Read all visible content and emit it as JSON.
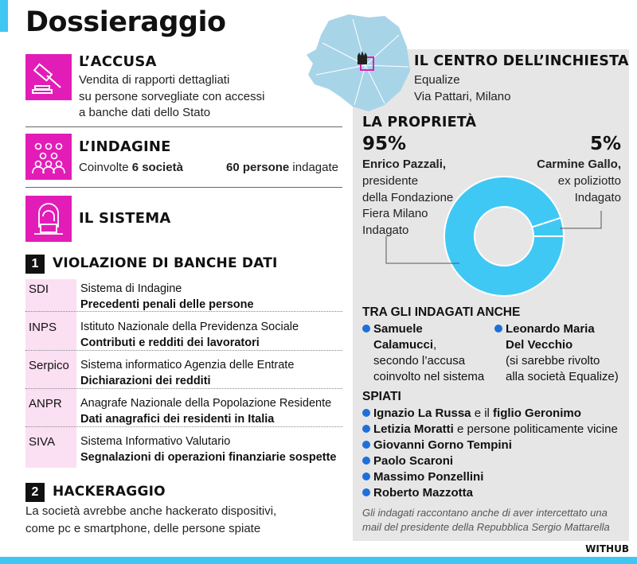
{
  "title": "Dossieraggio",
  "accusa": {
    "heading": "L’ACCUSA",
    "lines": [
      "Vendita di rapporti dettagliati",
      "su persone sorvegliate con accessi",
      "a banche dati dello Stato"
    ]
  },
  "indagine": {
    "heading": "L’INDAGINE",
    "a_pre": "Coinvolte ",
    "a_bold": "6 società",
    "b_bold": "60 persone",
    "b_post": " indagate"
  },
  "sistema": {
    "heading": "IL SISTEMA"
  },
  "section1": {
    "number": "1",
    "heading": "VIOLAZIONE DI BANCHE DATI",
    "rows": [
      {
        "code": "SDI",
        "name": "Sistema di Indagine",
        "data": "Precedenti penali delle persone"
      },
      {
        "code": "INPS",
        "name": "Istituto Nazionale della Previdenza Sociale",
        "data": "Contributi e redditi dei lavoratori"
      },
      {
        "code": "Serpico",
        "name": "Sistema informatico Agenzia delle Entrate",
        "data": "Dichiarazioni dei redditi"
      },
      {
        "code": "ANPR",
        "name": "Anagrafe Nazionale della Popolazione Residente",
        "data": "Dati anagrafici dei residenti in Italia"
      },
      {
        "code": "SIVA",
        "name": "Sistema Informativo Valutario",
        "data": "Segnalazioni di operazioni finanziarie sospette"
      }
    ]
  },
  "section2": {
    "number": "2",
    "heading": "HACKERAGGIO",
    "lines": [
      "La società avrebbe anche hackerato dispositivi,",
      "come pc e smartphone, delle persone spiate"
    ]
  },
  "centro": {
    "heading": "IL CENTRO DELL’INCHIESTA",
    "lines": [
      "Equalize",
      "Via Pattari, Milano"
    ]
  },
  "proprieta": {
    "heading": "LA PROPRIETÀ",
    "owners": [
      {
        "pct_label": "95%",
        "value": 95,
        "name": "Enrico Pazzali,",
        "lines": [
          "presidente",
          "della Fondazione",
          "Fiera Milano",
          "Indagato"
        ]
      },
      {
        "pct_label": "5%",
        "value": 5,
        "name": "Carmine Gallo,",
        "lines": [
          "ex poliziotto",
          "Indagato"
        ]
      }
    ],
    "color": "#40c8f4"
  },
  "indagati": {
    "heading": "TRA GLI INDAGATI ANCHE",
    "people": [
      {
        "name1": "Samuele",
        "name2": "Calamucci",
        "suffix": ",",
        "lines": [
          "secondo l’accusa",
          "coinvolto nel sistema"
        ]
      },
      {
        "name1": "Leonardo Maria",
        "name2": "Del Vecchio",
        "suffix": "",
        "lines": [
          "(si sarebbe rivolto",
          "alla società Equalize)"
        ]
      }
    ]
  },
  "spiati": {
    "heading": "SPIATI",
    "items": [
      {
        "b1": "Ignazio La Russa",
        "t": " e il ",
        "b2": "figlio Geronimo"
      },
      {
        "b1": "Letizia Moratti",
        "t": " e persone politicamente vicine",
        "b2": ""
      },
      {
        "b1": "Giovanni Gorno Tempini",
        "t": "",
        "b2": ""
      },
      {
        "b1": "Paolo Scaroni",
        "t": "",
        "b2": ""
      },
      {
        "b1": "Massimo Ponzellini",
        "t": "",
        "b2": ""
      },
      {
        "b1": "Roberto Mazzotta",
        "t": "",
        "b2": ""
      }
    ]
  },
  "note": [
    "Gli indagati raccontano anche di aver intercettato una",
    "mail del presidente della Repubblica Sergio Mattarella"
  ],
  "credit": "WITHUB",
  "colors": {
    "accent": "#e21db7",
    "cyan": "#3fc6f2",
    "bullet": "#1e6fd9",
    "panel": "#e6e6e6"
  }
}
